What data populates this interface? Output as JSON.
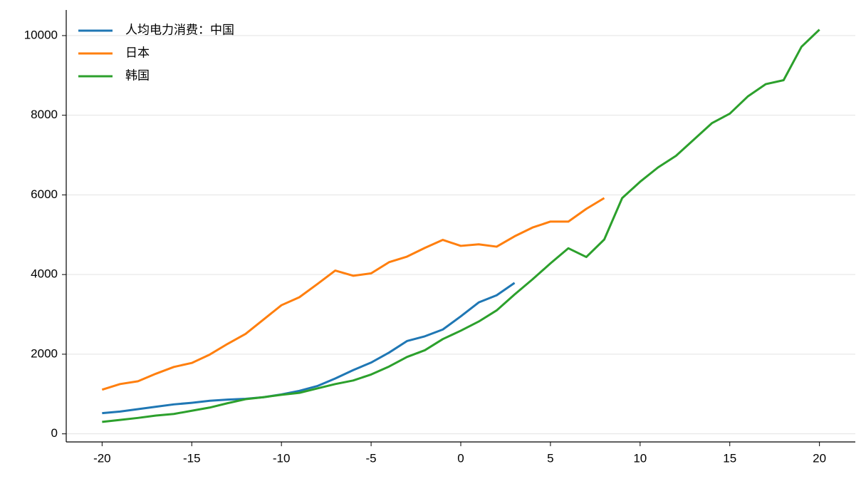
{
  "chart_data": {
    "type": "line",
    "xlim": [
      -22,
      22
    ],
    "xticks": [
      -20,
      -15,
      -10,
      -5,
      0,
      5,
      10,
      15,
      20
    ],
    "ylim": [
      -203,
      10643
    ],
    "yticks": [
      0,
      2000,
      4000,
      6000,
      8000,
      10000
    ],
    "grid": true,
    "legend": "upper left",
    "series": [
      {
        "name": "人均电力消费：中国",
        "color": "#1f77b4",
        "x": [
          -20,
          -19,
          -18,
          -17,
          -16,
          -15,
          -14,
          -13,
          -12,
          -11,
          -10,
          -9,
          -8,
          -7,
          -6,
          -5,
          -4,
          -3,
          -2,
          -1,
          0,
          1,
          2,
          3
        ],
        "values": [
          520,
          560,
          620,
          680,
          740,
          780,
          830,
          860,
          880,
          920,
          990,
          1080,
          1200,
          1390,
          1600,
          1790,
          2040,
          2330,
          2450,
          2620,
          2950,
          3300,
          3480,
          3790
        ]
      },
      {
        "name": "日本",
        "color": "#ff7f0e",
        "x": [
          -20,
          -19,
          -18,
          -17,
          -16,
          -15,
          -14,
          -13,
          -12,
          -11,
          -10,
          -9,
          -8,
          -7,
          -6,
          -5,
          -4,
          -3,
          -2,
          -1,
          0,
          1,
          2,
          3,
          4,
          5,
          6,
          7,
          8
        ],
        "values": [
          1110,
          1250,
          1320,
          1510,
          1680,
          1780,
          1990,
          2260,
          2510,
          2870,
          3230,
          3430,
          3760,
          4100,
          3970,
          4030,
          4310,
          4450,
          4670,
          4870,
          4720,
          4760,
          4700,
          4960,
          5180,
          5330,
          5330,
          5650,
          5920
        ]
      },
      {
        "name": "韩国",
        "color": "#2ca02c",
        "x": [
          -20,
          -19,
          -18,
          -17,
          -16,
          -15,
          -14,
          -13,
          -12,
          -11,
          -10,
          -9,
          -8,
          -7,
          -6,
          -5,
          -4,
          -3,
          -2,
          -1,
          0,
          1,
          2,
          3,
          4,
          5,
          6,
          7,
          8,
          9,
          10,
          11,
          12,
          13,
          14,
          15,
          16,
          17,
          18,
          19,
          20
        ],
        "values": [
          300,
          350,
          400,
          460,
          500,
          580,
          660,
          770,
          870,
          920,
          980,
          1030,
          1140,
          1250,
          1340,
          1490,
          1690,
          1930,
          2100,
          2380,
          2590,
          2820,
          3100,
          3500,
          3880,
          4280,
          4660,
          4440,
          4880,
          5920,
          6330,
          6690,
          6980,
          7390,
          7800,
          8040,
          8470,
          8780,
          8880,
          9720,
          10150
        ]
      }
    ]
  }
}
